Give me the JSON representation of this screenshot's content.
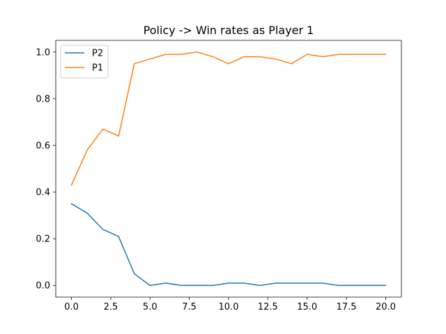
{
  "chart_data": {
    "type": "line",
    "title": "Policy -> Win rates as Player 1",
    "xlabel": "",
    "ylabel": "",
    "x": [
      0,
      1,
      2,
      3,
      4,
      5,
      6,
      7,
      8,
      9,
      10,
      11,
      12,
      13,
      14,
      15,
      16,
      17,
      18,
      19,
      20
    ],
    "series": [
      {
        "name": "P2",
        "color": "#1f77b4",
        "values": [
          0.35,
          0.31,
          0.24,
          0.21,
          0.05,
          0.0,
          0.01,
          0.0,
          0.0,
          0.0,
          0.01,
          0.01,
          0.0,
          0.01,
          0.01,
          0.01,
          0.01,
          0.0,
          0.0,
          0.0,
          0.0
        ]
      },
      {
        "name": "P1",
        "color": "#ff7f0e",
        "values": [
          0.43,
          0.58,
          0.67,
          0.64,
          0.95,
          0.97,
          0.99,
          0.99,
          1.0,
          0.98,
          0.95,
          0.98,
          0.98,
          0.97,
          0.95,
          0.99,
          0.98,
          0.99,
          0.99,
          0.99,
          0.99
        ]
      }
    ],
    "xlim": [
      -1.0,
      21.0
    ],
    "ylim": [
      -0.05,
      1.05
    ],
    "xticks": [
      0.0,
      2.5,
      5.0,
      7.5,
      10.0,
      12.5,
      15.0,
      17.5,
      20.0
    ],
    "xtick_labels": [
      "0.0",
      "2.5",
      "5.0",
      "7.5",
      "10.0",
      "12.5",
      "15.0",
      "17.5",
      "20.0"
    ],
    "yticks": [
      0.0,
      0.2,
      0.4,
      0.6,
      0.8,
      1.0
    ],
    "ytick_labels": [
      "0.0",
      "0.2",
      "0.4",
      "0.6",
      "0.8",
      "1.0"
    ],
    "grid": false,
    "legend_placement": "upper-left"
  }
}
